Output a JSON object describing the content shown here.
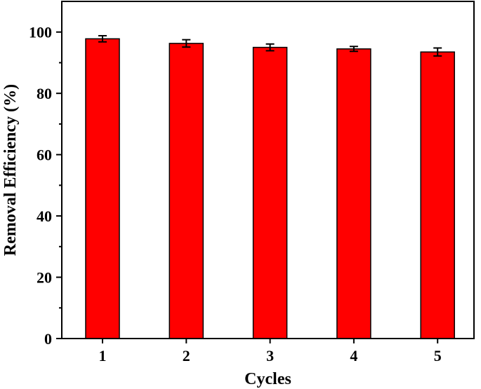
{
  "chart_data": {
    "type": "bar",
    "xlabel": "Cycles",
    "ylabel": "Removal Efficiency (%)",
    "categories": [
      "1",
      "2",
      "3",
      "4",
      "5"
    ],
    "values": [
      97.8,
      96.3,
      95.0,
      94.5,
      93.5
    ],
    "errors": [
      1.0,
      1.2,
      1.1,
      0.8,
      1.3
    ],
    "ylim": [
      0,
      110
    ],
    "yticks": [
      0,
      20,
      40,
      60,
      80,
      100
    ],
    "y_minor_ticks": [
      10,
      30,
      50,
      70,
      90
    ],
    "grid": false,
    "legend": "none",
    "colors": {
      "bar_fill": "#ff0000",
      "bar_stroke": "#000000",
      "axis": "#000000"
    }
  }
}
